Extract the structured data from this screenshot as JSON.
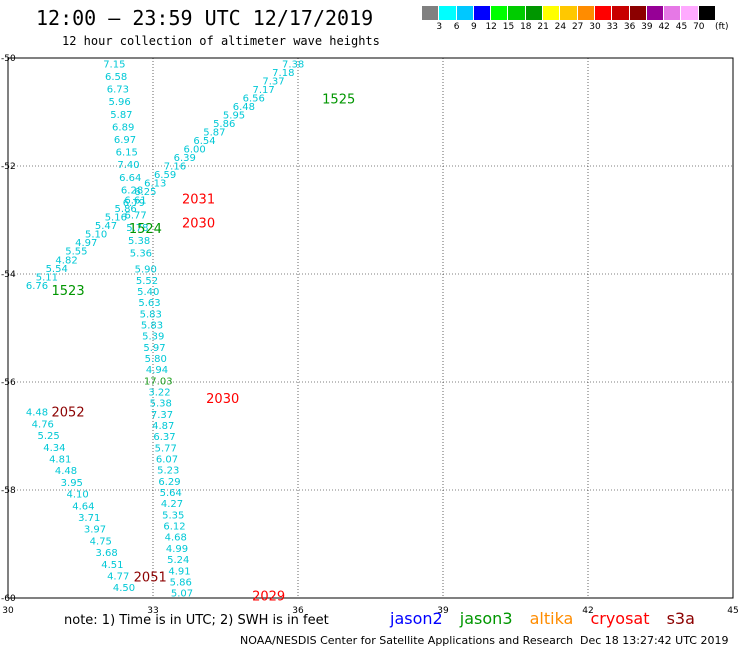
{
  "header": {
    "title": "12:00 — 23:59 UTC 12/17/2019",
    "subtitle": "12 hour collection of altimeter wave heights"
  },
  "legend": {
    "unit": "(ft)",
    "colors": [
      "#808080",
      "#00ffff",
      "#00c8ff",
      "#0000ff",
      "#00ff00",
      "#00cc00",
      "#009600",
      "#ffff00",
      "#ffc800",
      "#ff8c00",
      "#ff0000",
      "#c80000",
      "#8c0000",
      "#960096",
      "#e678e6",
      "#ffaaff",
      "#000000"
    ],
    "labels": [
      "3",
      "6",
      "9",
      "12",
      "15",
      "18",
      "21",
      "24",
      "27",
      "30",
      "33",
      "36",
      "39",
      "42",
      "45",
      "70"
    ]
  },
  "map": {
    "lon_range": [
      30,
      45
    ],
    "lat_range": [
      -50,
      -60
    ],
    "x_ticks": [
      "30",
      "33",
      "36",
      "39",
      "42",
      "45"
    ],
    "y_ticks": [
      "-50",
      "-52",
      "-54",
      "-56",
      "-58",
      "-60"
    ],
    "grid": true
  },
  "colors": {
    "cyan": "#00c8d6",
    "green_val": "#20a020",
    "jason2": "#0000ff",
    "jason3": "#009600",
    "altika": "#ff8c00",
    "cryosat": "#ff0000",
    "s3a": "#8c0000"
  },
  "chart_data": {
    "type": "scatter",
    "title": "12:00 — 23:59 UTC 12/17/2019",
    "subtitle": "12 hour collection of altimeter wave heights",
    "xlim": [
      30,
      45
    ],
    "ylim": [
      -60,
      -50
    ],
    "units": "ft",
    "time_labels": [
      {
        "text": "1525",
        "sat": "jason3",
        "lon": 36.5,
        "lat": -50.75
      },
      {
        "text": "2031",
        "sat": "cryosat",
        "lon": 33.6,
        "lat": -52.6
      },
      {
        "text": "2030",
        "sat": "cryosat",
        "lon": 33.6,
        "lat": -53.05
      },
      {
        "text": "1524",
        "sat": "jason3",
        "lon": 32.5,
        "lat": -53.15
      },
      {
        "text": "1523",
        "sat": "jason3",
        "lon": 30.9,
        "lat": -54.3
      },
      {
        "text": "2030",
        "sat": "cryosat",
        "lon": 34.1,
        "lat": -56.3
      },
      {
        "text": "2052",
        "sat": "s3a",
        "lon": 30.9,
        "lat": -56.55
      },
      {
        "text": "2051",
        "sat": "s3a",
        "lon": 32.6,
        "lat": -59.6
      },
      {
        "text": "2029",
        "sat": "cryosat",
        "lon": 35.05,
        "lat": -59.95
      }
    ],
    "tracks": [
      {
        "sat": "jason3",
        "lon_start": 30.6,
        "lat_start": -54.2,
        "lon_end": 35.9,
        "lat_end": -50.1,
        "values": [
          "6.76",
          "5.11",
          "5.54",
          "4.82",
          "5.55",
          "4.97",
          "5.10",
          "5.47",
          "5.16",
          "5.86",
          "6.61",
          "6.25",
          "6.13",
          "6.59",
          "7.16",
          "6.39",
          "6.00",
          "6.54",
          "5.87",
          "5.86",
          "5.95",
          "6.48",
          "6.56",
          "7.17",
          "7.37",
          "7.18",
          "7.38"
        ],
        "green": []
      },
      {
        "sat": "cryosat_a",
        "lon_start": 32.2,
        "lat_start": -50.1,
        "lon_end": 32.75,
        "lat_end": -53.6,
        "values": [
          "7.15",
          "6.58",
          "6.73",
          "5.96",
          "5.87",
          "6.89",
          "6.97",
          "6.15",
          "7.40",
          "6.64",
          "6.28",
          "6.79",
          "6.77",
          "5.78",
          "5.38",
          "5.36"
        ],
        "green": []
      },
      {
        "sat": "cryosat_b",
        "lon_start": 32.85,
        "lat_start": -53.9,
        "lon_end": 33.6,
        "lat_end": -59.9,
        "values": [
          "5.90",
          "5.52",
          "5.40",
          "5.63",
          "5.83",
          "5.83",
          "5.39",
          "5.97",
          "5.80",
          "4.94",
          "17.03",
          "3.22",
          "5.38",
          "7.37",
          "4.87",
          "6.37",
          "5.77",
          "6.07",
          "5.23",
          "6.29",
          "5.64",
          "4.27",
          "5.35",
          "6.12",
          "4.68",
          "4.99",
          "5.24",
          "4.91",
          "5.86",
          "5.07"
        ],
        "green": [
          "17.03"
        ]
      },
      {
        "sat": "s3a",
        "lon_start": 30.6,
        "lat_start": -56.55,
        "lon_end": 32.4,
        "lat_end": -59.8,
        "values": [
          "4.48",
          "4.76",
          "5.25",
          "4.34",
          "4.81",
          "4.48",
          "3.95",
          "4.10",
          "4.64",
          "3.71",
          "3.97",
          "4.75",
          "3.68",
          "4.51",
          "4.77",
          "4.50"
        ],
        "green": []
      }
    ]
  },
  "footer": {
    "note": "note:  1) Time is in UTC;  2) SWH is in feet",
    "sats": [
      "jason2",
      "jason3",
      "altika",
      "cryosat",
      "s3a"
    ],
    "credit": "NOAA/NESDIS Center for Satellite Applications and Research",
    "timestamp": "Dec 18 13:27:42 UTC 2019"
  }
}
